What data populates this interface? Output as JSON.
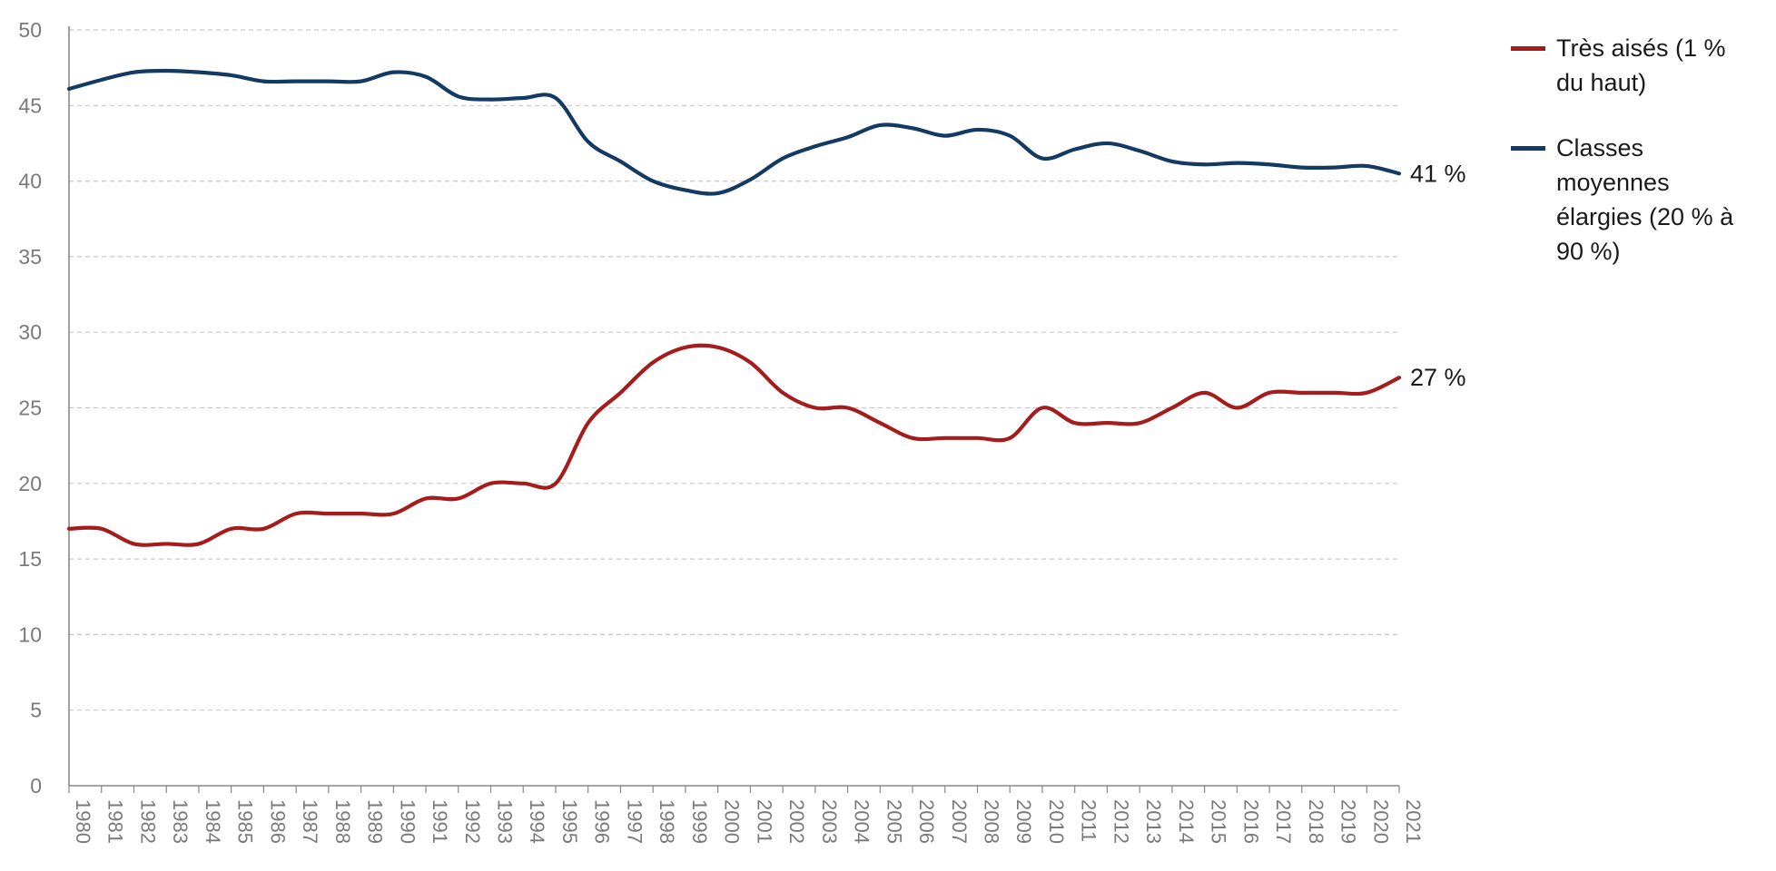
{
  "chart_data": {
    "type": "line",
    "title": "",
    "xlabel": "",
    "ylabel": "",
    "ylim": [
      0,
      50
    ],
    "yticks": [
      0,
      5,
      10,
      15,
      20,
      25,
      30,
      35,
      40,
      45,
      50
    ],
    "grid": true,
    "legend_position": "top-right",
    "x": [
      "1980",
      "1981",
      "1982",
      "1983",
      "1984",
      "1985",
      "1986",
      "1987",
      "1988",
      "1989",
      "1990",
      "1991",
      "1992",
      "1993",
      "1994",
      "1995",
      "1996",
      "1997",
      "1998",
      "1999",
      "2000",
      "2001",
      "2002",
      "2003",
      "2004",
      "2005",
      "2006",
      "2007",
      "2008",
      "2009",
      "2010",
      "2011",
      "2012",
      "2013",
      "2014",
      "2015",
      "2016",
      "2017",
      "2018",
      "2019",
      "2020",
      "2021"
    ],
    "series": [
      {
        "name": "Très aisés (1 % du haut)",
        "color": "#a51c1c",
        "end_label": "27 %",
        "values": [
          17,
          17,
          16,
          16,
          16,
          17,
          17,
          18,
          18,
          18,
          18,
          19,
          19,
          20,
          20,
          20,
          24,
          26,
          28,
          29,
          29,
          28,
          26,
          25,
          25,
          24,
          23,
          23,
          23,
          23,
          25,
          24,
          24,
          24,
          25,
          26,
          25,
          26,
          26,
          26,
          26,
          27
        ]
      },
      {
        "name": "Classes moyennes élargies (20 % à 90 %)",
        "color": "#123a63",
        "end_label": "41 %",
        "values": [
          46.1,
          46.7,
          47.2,
          47.3,
          47.2,
          47.0,
          46.6,
          46.6,
          46.6,
          46.6,
          47.2,
          46.9,
          45.6,
          45.4,
          45.5,
          45.5,
          42.6,
          41.3,
          40.0,
          39.4,
          39.2,
          40.1,
          41.5,
          42.3,
          42.9,
          43.7,
          43.5,
          43.0,
          43.4,
          43.0,
          41.5,
          42.1,
          42.5,
          42.0,
          41.3,
          41.1,
          41.2,
          41.1,
          40.9,
          40.9,
          41.0,
          40.5
        ]
      }
    ]
  },
  "legend": {
    "items": [
      {
        "label_lines": [
          "Très aisés (1 %",
          "du haut)"
        ]
      },
      {
        "label_lines": [
          "Classes",
          "moyennes",
          "élargies (20 % à",
          "90 %)"
        ]
      }
    ]
  }
}
